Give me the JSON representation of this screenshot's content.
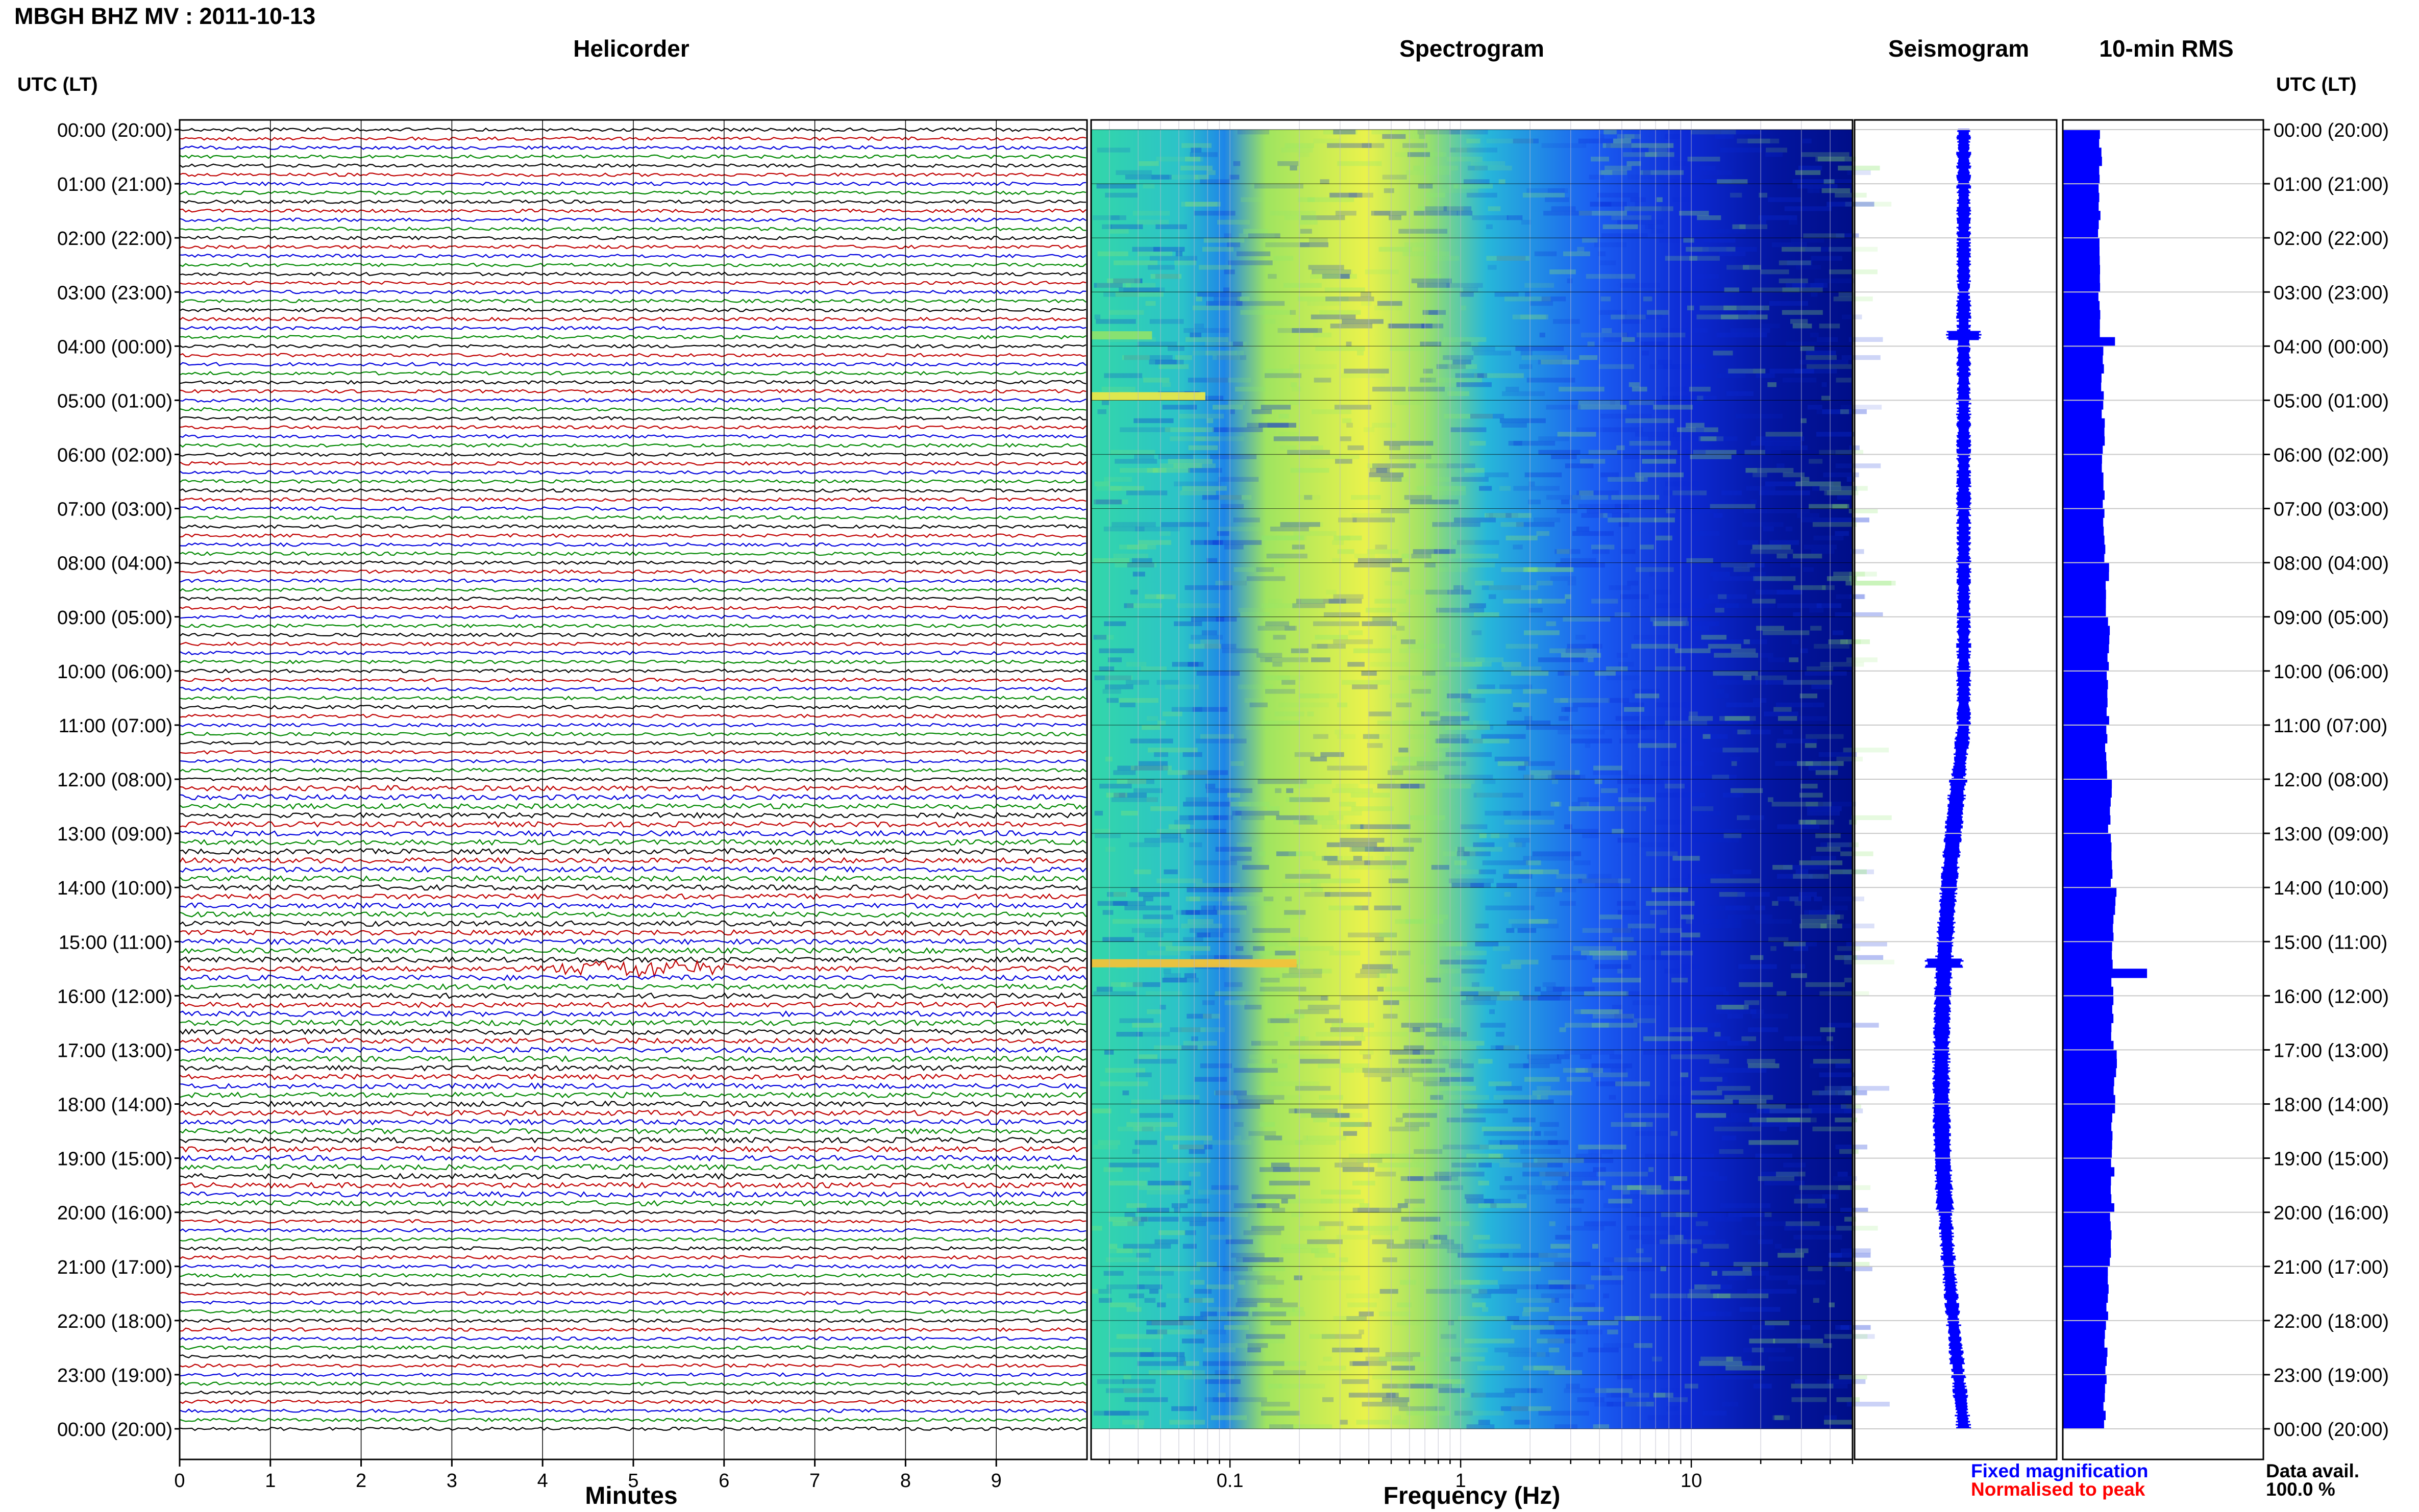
{
  "header": {
    "title": "MBGH BHZ MV : 2011-10-13"
  },
  "panels": {
    "helicorder": "Helicorder",
    "spectrogram": "Spectrogram",
    "seismogram": "Seismogram",
    "rms": "10-min RMS"
  },
  "axes": {
    "left_label": "UTC (LT)",
    "right_label": "UTC (LT)",
    "helicorder_xlabel": "Minutes",
    "spectrogram_xlabel": "Frequency (Hz)",
    "helicorder_ticks": [
      "0",
      "1",
      "2",
      "3",
      "4",
      "5",
      "6",
      "7",
      "8",
      "9"
    ],
    "spectrogram_ticks": [
      "0.1",
      "1",
      "10"
    ]
  },
  "legend": {
    "fixed": "Fixed magnification",
    "normalised": "Normalised to peak"
  },
  "availability": {
    "label": "Data avail.",
    "value": "100.0 %"
  },
  "colors": {
    "helicorder_traces": [
      "#000000",
      "#c00000",
      "#0000dd",
      "#008800"
    ],
    "seismogram": "#0000ff",
    "rms_bars": "#0000ff",
    "spectrogram_low": "#00008b",
    "spectrogram_high": "#ffff40"
  },
  "chart_data": [
    {
      "type": "line",
      "name": "Helicorder",
      "x_unit": "minutes",
      "xlim": [
        0,
        10
      ],
      "rows_per_hour": 6,
      "hour_labels": [
        "00:00 (20:00)",
        "01:00 (21:00)",
        "02:00 (22:00)",
        "03:00 (23:00)",
        "04:00 (00:00)",
        "05:00 (01:00)",
        "06:00 (02:00)",
        "07:00 (03:00)",
        "08:00 (04:00)",
        "09:00 (05:00)",
        "10:00 (06:00)",
        "11:00 (07:00)",
        "12:00 (08:00)",
        "13:00 (09:00)",
        "14:00 (10:00)",
        "15:00 (11:00)",
        "16:00 (12:00)",
        "17:00 (13:00)",
        "18:00 (14:00)",
        "19:00 (15:00)",
        "20:00 (16:00)",
        "21:00 (17:00)",
        "22:00 (18:00)",
        "23:00 (19:00)",
        "00:00 (20:00)"
      ],
      "events": [
        {
          "utc_hour": 15.5,
          "start_min": 3.9,
          "end_min": 6.3
        }
      ]
    },
    {
      "type": "heatmap",
      "name": "Spectrogram",
      "x_unit": "Hz",
      "x_scale": "log",
      "xlim": [
        0.025,
        50
      ],
      "x_ticks": [
        0.1,
        1,
        10
      ],
      "peak_band_hz": [
        0.2,
        0.6
      ],
      "y_range_utc_hours": [
        0,
        24
      ]
    },
    {
      "type": "line",
      "name": "Seismogram",
      "y_range_utc_hours": [
        0,
        24
      ],
      "events_utc_hours": [
        3.8,
        15.4
      ]
    },
    {
      "type": "bar",
      "name": "10-min RMS",
      "orientation": "horizontal",
      "y_range_utc_hours": [
        0,
        24
      ],
      "hourly_relative_rms": [
        0.45,
        0.43,
        0.44,
        0.43,
        0.47,
        0.48,
        0.48,
        0.49,
        0.53,
        0.54,
        0.54,
        0.52,
        0.56,
        0.58,
        0.62,
        0.6,
        0.58,
        0.62,
        0.6,
        0.59,
        0.56,
        0.53,
        0.51,
        0.5
      ],
      "spikes": [
        {
          "utc_hour": 3.83,
          "relative_rms": 0.62
        },
        {
          "utc_hour": 15.5,
          "relative_rms": 1.0
        }
      ]
    }
  ]
}
